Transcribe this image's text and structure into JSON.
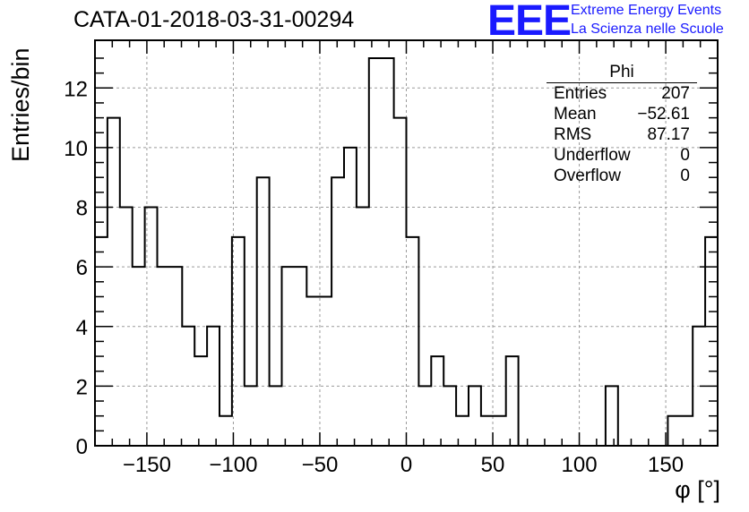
{
  "title": "CATA-01-2018-03-31-00294",
  "logo": {
    "mark": "EEE",
    "line1": "Extreme Energy Events",
    "line2": "La Scienza nelle Scuole"
  },
  "stats": {
    "name": "Phi",
    "rows": [
      {
        "label": "Entries",
        "value": "207"
      },
      {
        "label": "Mean",
        "value": "−52.61"
      },
      {
        "label": "RMS",
        "value": "87.17"
      },
      {
        "label": "Underflow",
        "value": "0"
      },
      {
        "label": "Overflow",
        "value": "0"
      }
    ]
  },
  "chart_data": {
    "type": "bar",
    "style": "step-histogram",
    "xlabel": "φ [°]",
    "ylabel": "Entries/bin",
    "xlim": [
      -180,
      180
    ],
    "ylim": [
      0,
      13.6
    ],
    "bin_width": 7.2,
    "x_ticks": [
      -150,
      -100,
      -50,
      0,
      50,
      100,
      150
    ],
    "x_tick_labels": [
      "−150",
      "−100",
      "−50",
      "0",
      "50",
      "100",
      "150"
    ],
    "y_ticks": [
      0,
      2,
      4,
      6,
      8,
      10,
      12
    ],
    "y_tick_labels": [
      "0",
      "2",
      "4",
      "6",
      "8",
      "10",
      "12"
    ],
    "grid": true,
    "values": [
      7,
      11,
      8,
      6,
      8,
      6,
      6,
      4,
      3,
      4,
      1,
      7,
      2,
      9,
      2,
      6,
      6,
      5,
      5,
      9,
      10,
      8,
      13,
      13,
      11,
      7,
      2,
      3,
      2,
      1,
      2,
      1,
      1,
      3,
      0,
      0,
      0,
      0,
      0,
      0,
      0,
      2,
      0,
      0,
      0,
      0,
      1,
      1,
      4,
      7
    ],
    "line_color": "#000000",
    "grid_color": "#9a9a9a"
  }
}
